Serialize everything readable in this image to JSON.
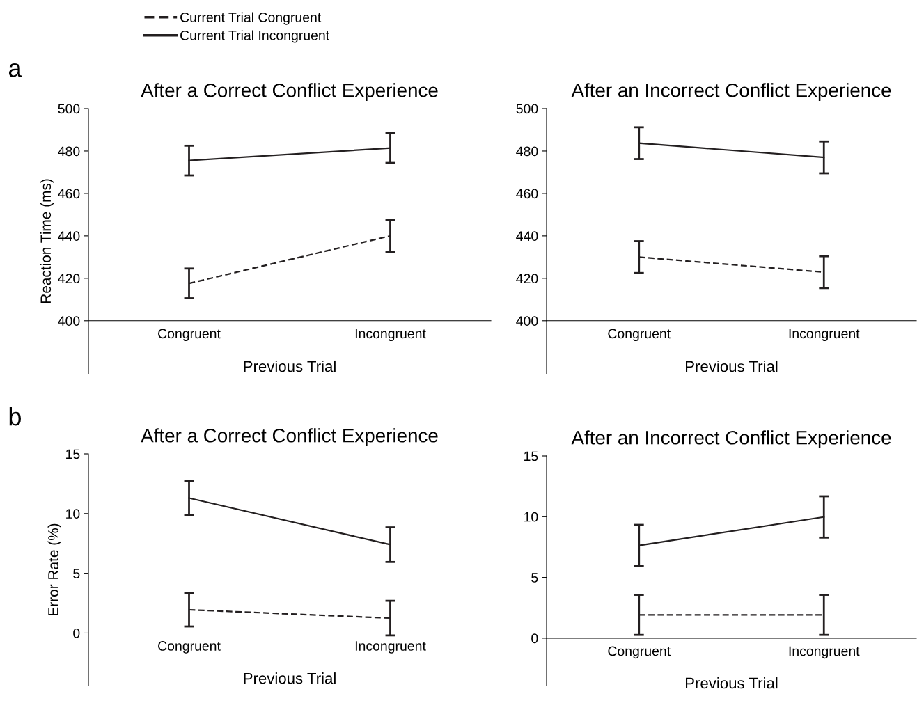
{
  "chart_data": [
    {
      "type": "line",
      "title": "After a Correct Conflict Experience",
      "xlabel": "Previous Trial",
      "ylabel": "Reaction Time (ms)",
      "categories": [
        "Congruent",
        "Incongruent"
      ],
      "ylim": [
        375,
        500
      ],
      "yticks": [
        400,
        420,
        440,
        460,
        480,
        500
      ],
      "annotations": [
        "a"
      ],
      "legend": "top left",
      "marker": "none",
      "series": [
        {
          "name": "Current Trial Congruent",
          "color": "#231f20",
          "line_style": "dashed",
          "values": [
            417.6,
            440
          ],
          "errors": [
            7,
            7.5
          ]
        },
        {
          "name": "Current Trial Incongruent",
          "color": "#231f20",
          "line_style": "solid",
          "values": [
            475.5,
            481.4
          ],
          "errors": [
            7,
            7
          ]
        }
      ]
    },
    {
      "type": "line",
      "title": "After an Incorrect Conflict Experience",
      "xlabel": "Previous Trial",
      "categories": [
        "Congruent",
        "Incongruent"
      ],
      "ylim": [
        375,
        500
      ],
      "yticks": [
        400,
        420,
        440,
        460,
        480,
        500
      ],
      "marker": "none",
      "series": [
        {
          "color": "#231f20",
          "line_style": "dashed",
          "values": [
            430,
            422.9
          ],
          "errors": [
            7.5,
            7.5
          ]
        },
        {
          "color": "#231f20",
          "line_style": "solid",
          "values": [
            483.7,
            477
          ],
          "errors": [
            7.5,
            7.5
          ]
        }
      ]
    },
    {
      "type": "line",
      "title": "After a Correct Conflict Experience",
      "xlabel": "Previous Trial",
      "ylabel": "Error Rate (%)",
      "categories": [
        "Congruent",
        "Incongruent"
      ],
      "ylim": [
        -4.4,
        15
      ],
      "yticks": [
        0,
        5,
        10,
        15
      ],
      "annotations": [
        "b"
      ],
      "marker": "none",
      "series": [
        {
          "color": "#231f20",
          "line_style": "dashed",
          "values": [
            1.95,
            1.25
          ],
          "errors": [
            1.4,
            1.45
          ]
        },
        {
          "color": "#231f20",
          "line_style": "solid",
          "values": [
            11.3,
            7.4
          ],
          "errors": [
            1.45,
            1.45
          ]
        }
      ]
    },
    {
      "type": "line",
      "title": "After an Incorrect Conflict Experience",
      "xlabel": "Previous Trial",
      "categories": [
        "Congruent",
        "Incongruent"
      ],
      "ylim": [
        -3.9,
        15
      ],
      "yticks": [
        0,
        5,
        10,
        15
      ],
      "marker": "none",
      "series": [
        {
          "color": "#231f20",
          "line_style": "dashed",
          "values": [
            1.92,
            1.92
          ],
          "errors": [
            1.65,
            1.65
          ]
        },
        {
          "color": "#231f20",
          "line_style": "solid",
          "values": [
            7.63,
            9.98
          ],
          "errors": [
            1.7,
            1.7
          ]
        }
      ]
    }
  ]
}
